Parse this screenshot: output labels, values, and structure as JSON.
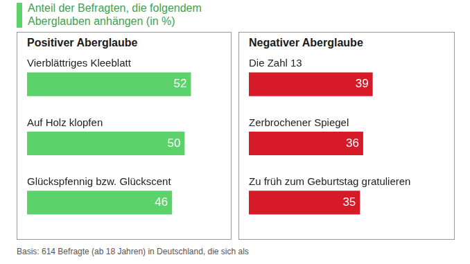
{
  "header": {
    "title": "Anteil der Befragten, die folgendem Aberglauben anhängen (in %)"
  },
  "footnote": "Basis: 614 Befragte (ab 18 Jahren) in Deutschland, die sich als",
  "chart_data": [
    {
      "type": "bar",
      "title": "Positiver Aberglaube",
      "orientation": "horizontal",
      "categories": [
        "Vierblättriges Kleeblatt",
        "Auf Holz klopfen",
        "Glückspfennig bzw. Glückscent"
      ],
      "values": [
        52,
        50,
        46
      ],
      "color": "#5cd26a",
      "xlim": [
        0,
        62
      ],
      "grid": false,
      "data_labels": true,
      "tick_labels": false
    },
    {
      "type": "bar",
      "title": "Negativer Aberglaube",
      "orientation": "horizontal",
      "categories": [
        "Die Zahl 13",
        "Zerbrochener Spiegel",
        "Zu früh zum Geburtstag gratulieren"
      ],
      "values": [
        39,
        36,
        35
      ],
      "color": "#d71a28",
      "xlim": [
        0,
        62
      ],
      "grid": false,
      "data_labels": true,
      "tick_labels": false
    }
  ]
}
